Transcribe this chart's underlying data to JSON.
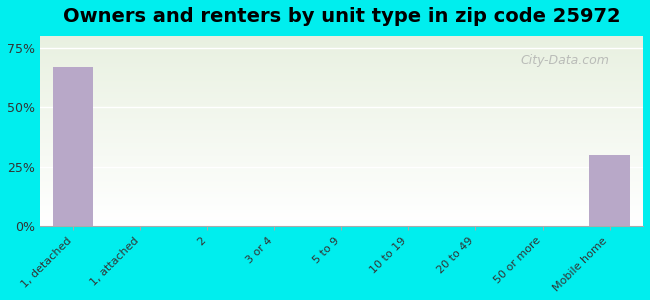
{
  "title": "Owners and renters by unit type in zip code 25972",
  "categories": [
    "1, detached",
    "1, attached",
    "2",
    "3 or 4",
    "5 to 9",
    "10 to 19",
    "20 to 49",
    "50 or more",
    "Mobile home"
  ],
  "values": [
    67.0,
    0,
    0,
    0,
    0,
    0,
    0,
    0,
    30.0
  ],
  "bar_color": "#b8a8c8",
  "background_color": "#00eeee",
  "plot_bg_top": "#e8f0e0",
  "plot_bg_bottom": "#ffffff",
  "yticks": [
    0,
    25,
    50,
    75
  ],
  "ylim": [
    0,
    80
  ],
  "watermark": "City-Data.com",
  "title_fontsize": 14
}
